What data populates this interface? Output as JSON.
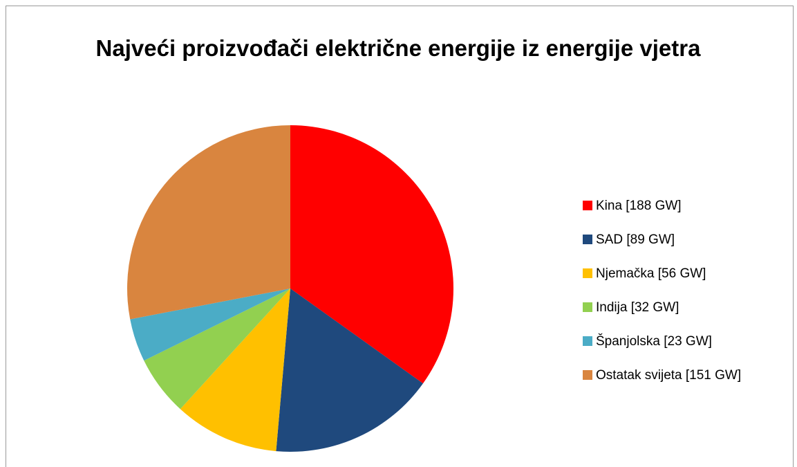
{
  "chart_data": {
    "type": "pie",
    "title": "Najveći proizvođači električne energije iz energije vjetra",
    "categories": [
      "Kina [188 GW]",
      "SAD [89 GW]",
      "Njemačka [56 GW]",
      "Indija [32 GW]",
      "Španjolska [23 GW]",
      "Ostatak svijeta [151 GW]"
    ],
    "values": [
      188,
      89,
      56,
      32,
      23,
      151
    ],
    "colors": [
      "#ff0000",
      "#1f497d",
      "#ffc000",
      "#92d050",
      "#4bacc6",
      "#d9853f"
    ],
    "legend": "right"
  }
}
